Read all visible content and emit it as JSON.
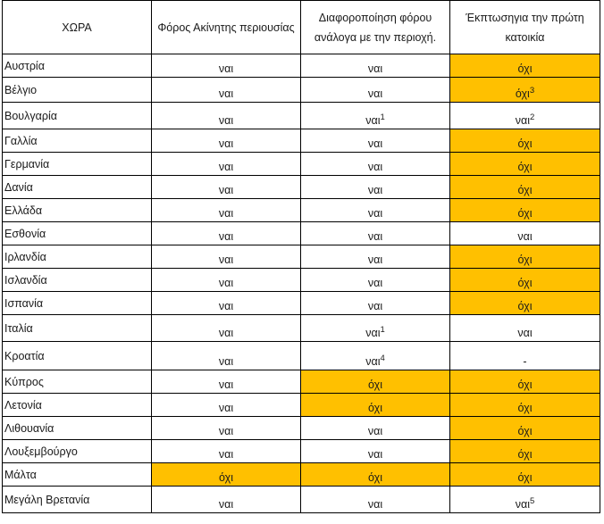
{
  "colors": {
    "highlight": "#ffc000",
    "border": "#000000"
  },
  "headers": [
    "ΧΩΡΑ",
    "Φόρος Ακίνητης περιουσίας",
    "Διαφοροποίηση φόρου ανάλογα με την περιοχή.",
    "Έκπτωσηγια την πρώτη κατοικία"
  ],
  "rows": [
    {
      "country": "Αυστρία",
      "cells": [
        {
          "text": "ναι"
        },
        {
          "text": "ναι"
        },
        {
          "text": "όχι",
          "highlight": true
        }
      ]
    },
    {
      "country": "Βέλγιο",
      "cells": [
        {
          "text": "ναι"
        },
        {
          "text": "ναι"
        },
        {
          "text": "όχι",
          "sup": "3",
          "highlight": true
        }
      ]
    },
    {
      "country": "Βουλγαρία",
      "cells": [
        {
          "text": "ναι"
        },
        {
          "text": "ναι",
          "sup": "1"
        },
        {
          "text": "ναι",
          "sup": "2"
        }
      ]
    },
    {
      "country": "Γαλλία",
      "cells": [
        {
          "text": "ναι"
        },
        {
          "text": "ναι"
        },
        {
          "text": "όχι",
          "highlight": true
        }
      ]
    },
    {
      "country": "Γερμανία",
      "cells": [
        {
          "text": "ναι"
        },
        {
          "text": "ναι"
        },
        {
          "text": "όχι",
          "highlight": true
        }
      ]
    },
    {
      "country": "Δανία",
      "cells": [
        {
          "text": "ναι"
        },
        {
          "text": "ναι"
        },
        {
          "text": "όχι",
          "highlight": true
        }
      ]
    },
    {
      "country": "Ελλάδα",
      "cells": [
        {
          "text": "ναι"
        },
        {
          "text": "ναι"
        },
        {
          "text": "όχι",
          "highlight": true
        }
      ]
    },
    {
      "country": "Εσθονία",
      "cells": [
        {
          "text": "ναι"
        },
        {
          "text": "ναι"
        },
        {
          "text": "ναι"
        }
      ]
    },
    {
      "country": "Ιρλανδία",
      "cells": [
        {
          "text": "ναι"
        },
        {
          "text": "ναι"
        },
        {
          "text": "όχι",
          "highlight": true
        }
      ]
    },
    {
      "country": "Ισλανδία",
      "cells": [
        {
          "text": "ναι"
        },
        {
          "text": "ναι"
        },
        {
          "text": "όχι",
          "highlight": true
        }
      ]
    },
    {
      "country": "Ισπανία",
      "cells": [
        {
          "text": "ναι"
        },
        {
          "text": "ναι"
        },
        {
          "text": "όχι",
          "highlight": true
        }
      ]
    },
    {
      "country": "Ιταλία",
      "cells": [
        {
          "text": "ναι"
        },
        {
          "text": "ναι",
          "sup": "1"
        },
        {
          "text": "ναι"
        }
      ]
    },
    {
      "country": "Κροατία",
      "cells": [
        {
          "text": "ναι"
        },
        {
          "text": "ναι",
          "sup": "4"
        },
        {
          "text": "-"
        }
      ]
    },
    {
      "country": "Κύπρος",
      "cells": [
        {
          "text": "ναι"
        },
        {
          "text": "όχι",
          "highlight": true
        },
        {
          "text": "όχι",
          "highlight": true
        }
      ]
    },
    {
      "country": "Λετονία",
      "cells": [
        {
          "text": "ναι"
        },
        {
          "text": "όχι",
          "highlight": true
        },
        {
          "text": "όχι",
          "highlight": true
        }
      ]
    },
    {
      "country": "Λιθουανία",
      "cells": [
        {
          "text": "ναι"
        },
        {
          "text": "ναι"
        },
        {
          "text": "όχι",
          "highlight": true
        }
      ]
    },
    {
      "country": "Λουξεμβούργο",
      "cells": [
        {
          "text": "ναι"
        },
        {
          "text": "ναι"
        },
        {
          "text": "όχι",
          "highlight": true
        }
      ]
    },
    {
      "country": "Μάλτα",
      "cells": [
        {
          "text": "όχι",
          "highlight": true
        },
        {
          "text": "όχι",
          "highlight": true
        },
        {
          "text": "όχι",
          "highlight": true
        }
      ]
    },
    {
      "country": "Μεγάλη Βρετανία",
      "cells": [
        {
          "text": "ναι"
        },
        {
          "text": "ναι"
        },
        {
          "text": "ναι",
          "sup": "5"
        }
      ]
    }
  ]
}
